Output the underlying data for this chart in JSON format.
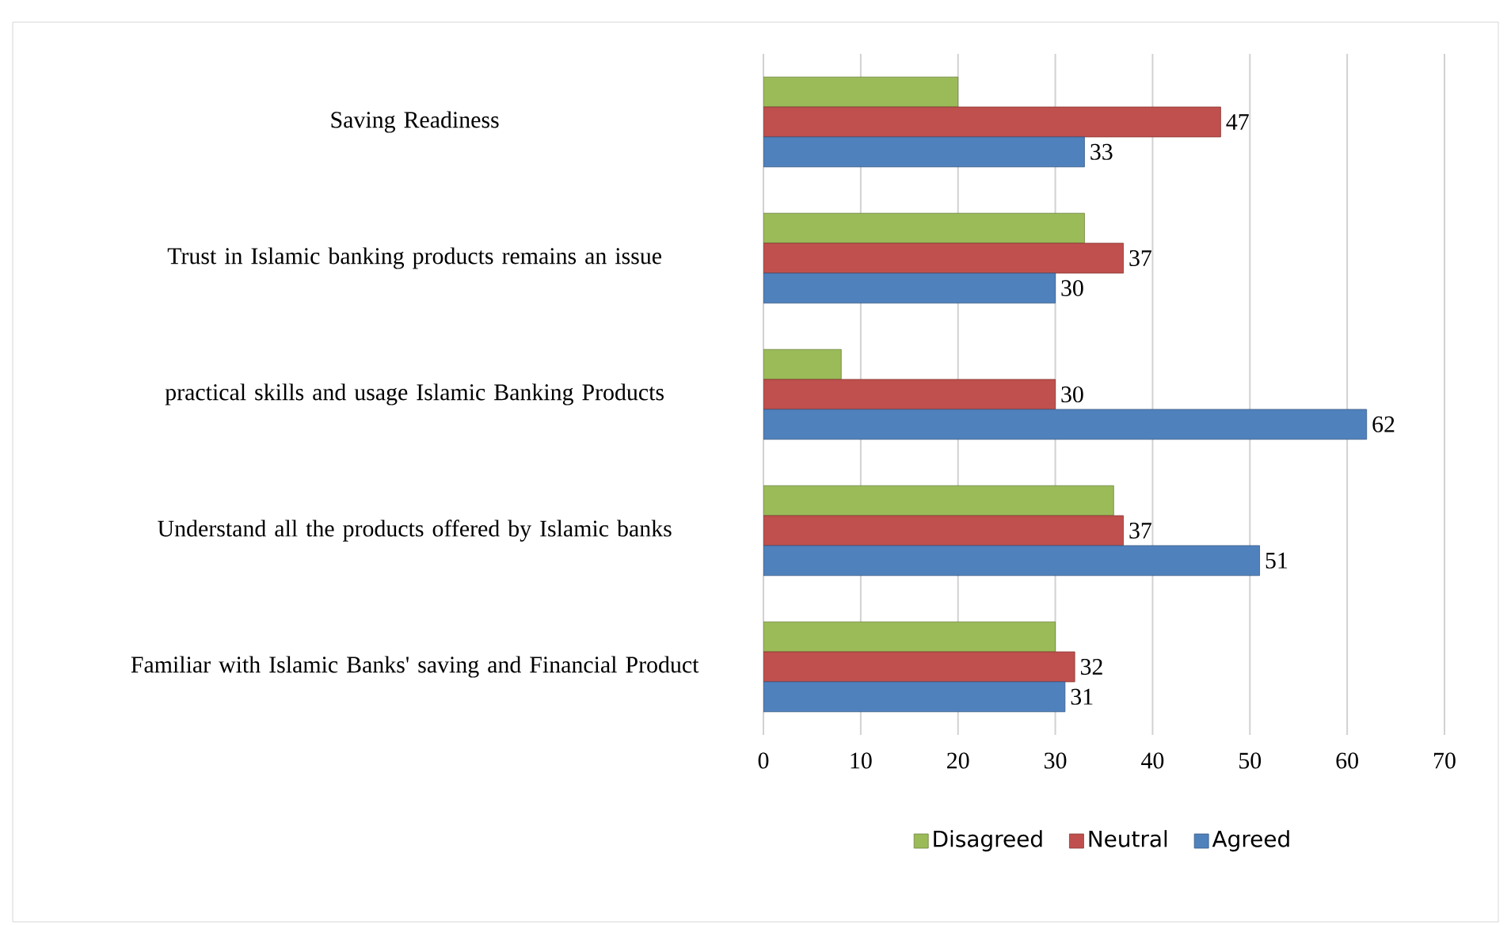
{
  "chart_data": {
    "type": "bar",
    "orientation": "horizontal",
    "categories": [
      "Saving Readiness",
      "Trust in Islamic banking products remains an issue",
      "practical skills and usage Islamic Banking Products",
      "Understand all the products offered by Islamic banks",
      "Familiar with Islamic Banks' saving and Financial Product"
    ],
    "series": [
      {
        "name": "Disagreed",
        "color": "#9bbb59",
        "values": [
          20,
          33,
          8,
          36,
          30
        ]
      },
      {
        "name": "Neutral",
        "color": "#c0504d",
        "values": [
          47,
          37,
          30,
          37,
          32
        ],
        "value_labels": [
          "47",
          "37",
          "30",
          "37",
          "32"
        ]
      },
      {
        "name": "Agreed",
        "color": "#4f81bd",
        "values": [
          33,
          30,
          62,
          51,
          31
        ],
        "value_labels": [
          "33",
          "30",
          "62",
          "51",
          "31"
        ]
      }
    ],
    "xlim": [
      0,
      70
    ],
    "xticks": [
      0,
      10,
      20,
      30,
      40,
      50,
      60,
      70
    ],
    "grid": "x",
    "legend": "bottom"
  }
}
